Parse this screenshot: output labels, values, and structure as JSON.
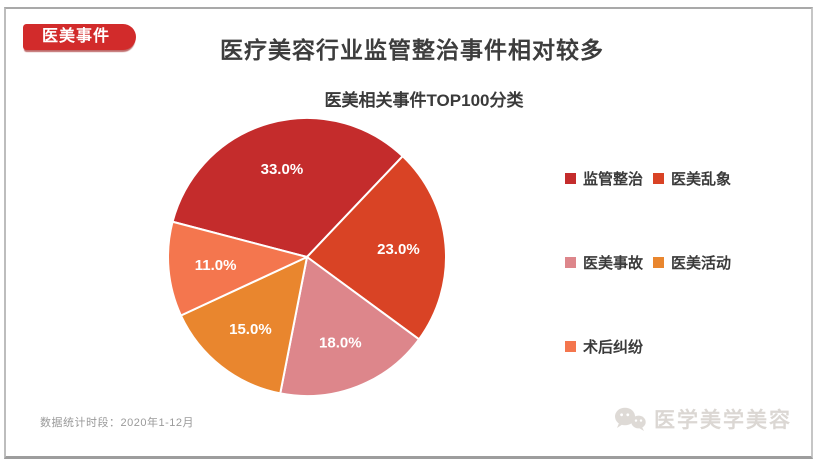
{
  "slide": {
    "badge": "医美事件",
    "title": "医疗美容行业监管整治事件相对较多",
    "footer_note": "数据统计时段：2020年1-12月",
    "watermark": "医学美学美容",
    "accent_red": "#d22b2b"
  },
  "chart_data": {
    "type": "pie",
    "title": "医美相关事件TOP100分类",
    "unit": "%",
    "slices": [
      {
        "label": "监管整治",
        "value": 33.0,
        "color": "#c42c2c"
      },
      {
        "label": "医美乱象",
        "value": 23.0,
        "color": "#d94325"
      },
      {
        "label": "医美事故",
        "value": 18.0,
        "color": "#dd868b"
      },
      {
        "label": "医美活动",
        "value": 15.0,
        "color": "#e9862e"
      },
      {
        "label": "术后纠纷",
        "value": 11.0,
        "color": "#f4764e"
      }
    ],
    "data_labels": [
      "33.0%",
      "23.0%",
      "18.0%",
      "15.0%",
      "11.0%"
    ],
    "start_angle_deg": 165.3,
    "direction": "clockwise",
    "legend_position": "right",
    "legend_columns": 2
  }
}
